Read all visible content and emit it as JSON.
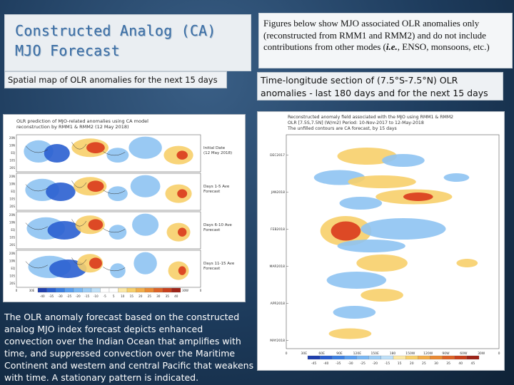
{
  "title": "Constructed Analog (CA)\nMJO Forecast",
  "description": {
    "part1": "Figures below show MJO associated OLR anomalies only (reconstructed from RMM1 and RMM2) and do not include contributions from other modes (",
    "italic": "i.e.",
    "part2": ", ENSO, monsoons, etc.)"
  },
  "left_caption": "Spatial map of OLR anomalies for the next 15 days",
  "right_caption": "Time-longitude section of (7.5°S-7.5°N) OLR anomalies - last 180 days and for the next 15 days",
  "body_text": "The OLR anomaly forecast based on the constructed analog MJO index forecast depicts enhanced convection over the Indian Ocean that amplifies with time, and suppressed convection over the Maritime Continent and western and central Pacific that weakens with time. A stationary pattern is indicated.",
  "map_figure": {
    "title_line1": "OLR prediction of MJO-related anomalies using CA model",
    "title_line2": "reconstruction by RMM1 & RMM2 (12 May 2018)",
    "panels": [
      {
        "label_line1": "Initial Date",
        "label_line2": "(12 May 2018)"
      },
      {
        "label_line1": "Days 1-5 Ave",
        "label_line2": "Forecast"
      },
      {
        "label_line1": "Days 6-10 Ave",
        "label_line2": "Forecast"
      },
      {
        "label_line1": "Days 11-15 Ave",
        "label_line2": "Forecast"
      }
    ],
    "lat_labels": [
      "20N",
      "10N",
      "EQ",
      "10S",
      "20S"
    ],
    "lon_labels": [
      "0",
      "30E",
      "60E",
      "90E",
      "120E",
      "150E",
      "180",
      "150W",
      "120W",
      "90W",
      "60W",
      "30W",
      "0"
    ],
    "colorbar_labels": [
      "-40",
      "-35",
      "-30",
      "-25",
      "-20",
      "-15",
      "-10",
      "-5",
      "5",
      "10",
      "15",
      "20",
      "25",
      "30",
      "35",
      "40"
    ]
  },
  "tl_figure": {
    "title_line1": "Reconstructed anomaly field associated with the MJO using RMM1 & RMM2",
    "title_line2": "OLR [7.5S,7.5N] (W/m2) Period: 10-Nov-2017 to 12-May-2018",
    "title_line3": "The unfilled contours are CA forecast, by 15 days",
    "dates": [
      "DEC2017",
      "JAN2018",
      "FEB2018",
      "MAR2018",
      "APR2018",
      "MAY2018"
    ],
    "lon_labels": [
      "0",
      "30E",
      "60E",
      "90E",
      "120E",
      "150E",
      "180",
      "150W",
      "120W",
      "90W",
      "60W",
      "30W",
      "0"
    ],
    "colorbar_labels": [
      "-45",
      "-40",
      "-35",
      "-30",
      "-25",
      "-20",
      "-15",
      "15",
      "20",
      "25",
      "30",
      "35",
      "40",
      "45"
    ]
  },
  "colors": {
    "title": "#3b6ea5",
    "negative_dark": "#2a5fd0",
    "negative_light": "#8ec3f2",
    "positive_light": "#f7cf6a",
    "positive_dark": "#d93a1c"
  }
}
